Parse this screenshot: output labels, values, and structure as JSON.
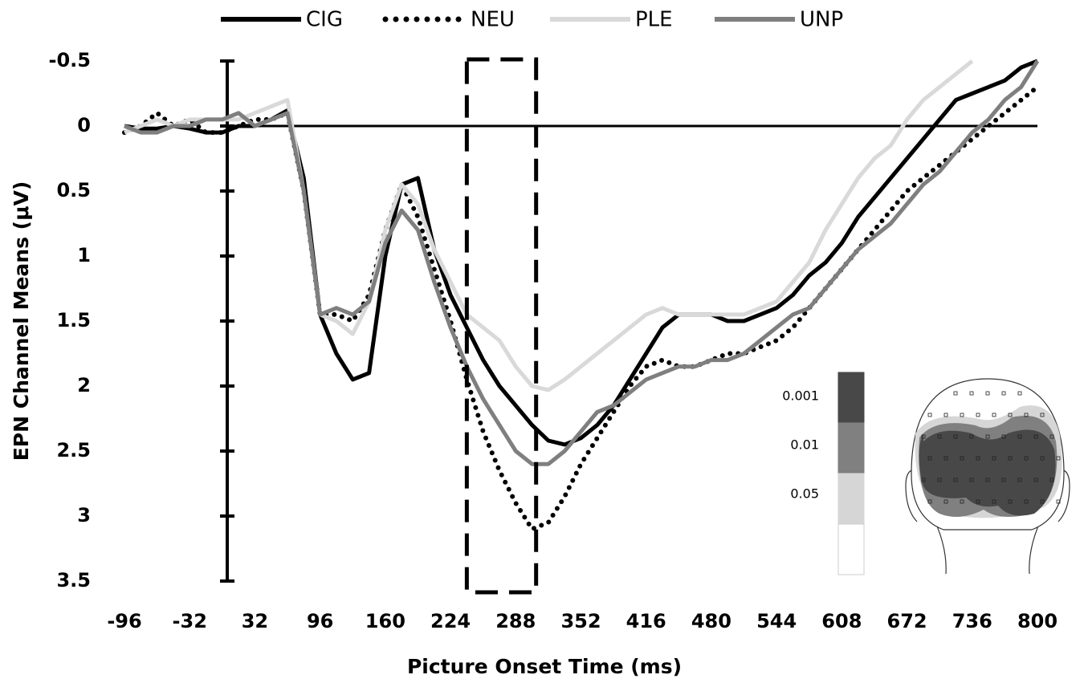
{
  "chart_data": {
    "type": "line",
    "x_label": "Picture Onset Time (ms)",
    "y_label": "EPN Channel Means (μV)",
    "x": [
      -96,
      -80,
      -64,
      -48,
      -32,
      -16,
      0,
      16,
      32,
      48,
      64,
      80,
      96,
      112,
      128,
      144,
      160,
      176,
      192,
      208,
      224,
      240,
      256,
      272,
      288,
      304,
      320,
      336,
      352,
      368,
      384,
      400,
      416,
      432,
      448,
      464,
      480,
      496,
      512,
      528,
      544,
      560,
      576,
      592,
      608,
      624,
      640,
      656,
      672,
      688,
      704,
      720,
      736,
      752,
      768,
      784,
      800
    ],
    "series": [
      {
        "name": "CIG",
        "color": "#000000",
        "dash": "solid",
        "values": [
          0,
          0.02,
          0.02,
          0,
          0.02,
          0.05,
          0.05,
          0,
          0,
          -0.05,
          -0.12,
          0.4,
          1.45,
          1.75,
          1.95,
          1.9,
          1.0,
          0.45,
          0.4,
          0.95,
          1.3,
          1.55,
          1.8,
          2.0,
          2.15,
          2.3,
          2.42,
          2.45,
          2.4,
          2.3,
          2.15,
          1.95,
          1.75,
          1.55,
          1.45,
          1.45,
          1.45,
          1.5,
          1.5,
          1.45,
          1.4,
          1.3,
          1.15,
          1.05,
          0.9,
          0.7,
          0.55,
          0.4,
          0.25,
          0.1,
          -0.05,
          -0.2,
          -0.25,
          -0.3,
          -0.35,
          -0.45,
          -0.5
        ]
      },
      {
        "name": "NEU",
        "color": "#000000",
        "dash": "dotted",
        "values": [
          0.05,
          0,
          -0.1,
          0,
          -0.05,
          0.05,
          0.05,
          0,
          -0.05,
          -0.05,
          -0.1,
          0.5,
          1.45,
          1.45,
          1.5,
          1.3,
          0.8,
          0.45,
          0.7,
          1.1,
          1.5,
          1.95,
          2.35,
          2.65,
          2.9,
          3.1,
          3.05,
          2.85,
          2.6,
          2.4,
          2.2,
          2.0,
          1.85,
          1.8,
          1.85,
          1.85,
          1.8,
          1.75,
          1.75,
          1.7,
          1.65,
          1.55,
          1.4,
          1.25,
          1.1,
          0.95,
          0.8,
          0.65,
          0.5,
          0.4,
          0.3,
          0.2,
          0.1,
          0,
          -0.1,
          -0.2,
          -0.3
        ]
      },
      {
        "name": "PLE",
        "color": "#d9d9d9",
        "dash": "solid",
        "values": [
          0.05,
          0,
          -0.05,
          0,
          -0.05,
          -0.05,
          -0.05,
          -0.05,
          -0.1,
          -0.15,
          -0.2,
          0.5,
          1.45,
          1.5,
          1.6,
          1.35,
          0.8,
          0.45,
          0.6,
          0.95,
          1.2,
          1.45,
          1.55,
          1.65,
          1.85,
          2.0,
          2.03,
          1.95,
          1.85,
          1.75,
          1.65,
          1.55,
          1.45,
          1.4,
          1.45,
          1.45,
          1.45,
          1.45,
          1.45,
          1.4,
          1.35,
          1.2,
          1.05,
          0.8,
          0.6,
          0.4,
          0.25,
          0.15,
          -0.05,
          -0.2,
          -0.3,
          -0.4,
          -0.5,
          null,
          null,
          null,
          null
        ]
      },
      {
        "name": "UNP",
        "color": "#7f7f7f",
        "dash": "solid",
        "values": [
          0,
          0.05,
          0.05,
          0,
          0,
          -0.05,
          -0.05,
          -0.1,
          0,
          -0.05,
          -0.1,
          0.5,
          1.45,
          1.4,
          1.45,
          1.35,
          0.9,
          0.65,
          0.8,
          1.2,
          1.55,
          1.85,
          2.1,
          2.3,
          2.5,
          2.6,
          2.6,
          2.5,
          2.35,
          2.2,
          2.15,
          2.05,
          1.95,
          1.9,
          1.85,
          1.85,
          1.8,
          1.8,
          1.75,
          1.65,
          1.55,
          1.45,
          1.4,
          1.25,
          1.1,
          0.95,
          0.85,
          0.75,
          0.6,
          0.45,
          0.35,
          0.2,
          0.05,
          -0.05,
          -0.2,
          -0.3,
          -0.5
        ]
      }
    ],
    "xlim": [
      -96,
      800
    ],
    "xticks": [
      -96,
      -32,
      32,
      96,
      160,
      224,
      288,
      352,
      416,
      480,
      544,
      608,
      672,
      736,
      800
    ],
    "ylim": [
      -0.5,
      3.5
    ],
    "yticks": [
      -0.5,
      0,
      0.5,
      1,
      1.5,
      2,
      2.5,
      3,
      3.5
    ],
    "y_inverted": true,
    "reference_line": 0,
    "highlight_window": [
      240,
      308
    ],
    "legend": "top",
    "inset": {
      "scale_labels": [
        "0.001",
        "0.01",
        "0.05"
      ],
      "scale_colors": [
        "#484848",
        "#808080",
        "#d6d6d6",
        "#ffffff"
      ]
    }
  }
}
